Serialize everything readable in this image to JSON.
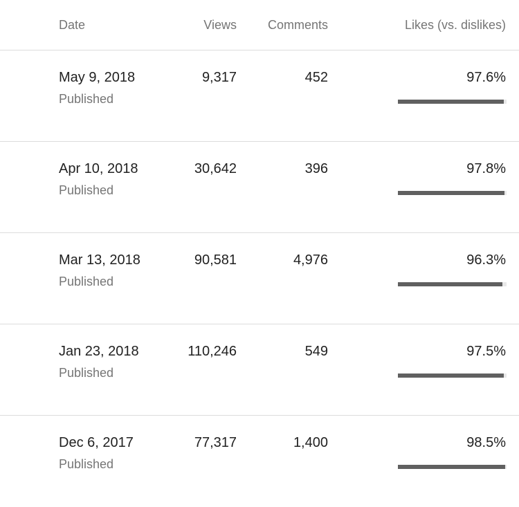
{
  "table": {
    "headers": {
      "date": "Date",
      "views": "Views",
      "comments": "Comments",
      "likes": "Likes (vs. dislikes)"
    },
    "rows": [
      {
        "date": "May 9, 2018",
        "status": "Published",
        "views": "9,317",
        "comments": "452",
        "likes": "97.6%",
        "likes_fraction": 0.976
      },
      {
        "date": "Apr 10, 2018",
        "status": "Published",
        "views": "30,642",
        "comments": "396",
        "likes": "97.8%",
        "likes_fraction": 0.978
      },
      {
        "date": "Mar 13, 2018",
        "status": "Published",
        "views": "90,581",
        "comments": "4,976",
        "likes": "96.3%",
        "likes_fraction": 0.963
      },
      {
        "date": "Jan 23, 2018",
        "status": "Published",
        "views": "110,246",
        "comments": "549",
        "likes": "97.5%",
        "likes_fraction": 0.975
      },
      {
        "date": "Dec 6, 2017",
        "status": "Published",
        "views": "77,317",
        "comments": "1,400",
        "likes": "98.5%",
        "likes_fraction": 0.985
      }
    ]
  },
  "colors": {
    "bar_fill": "#606060",
    "bar_track": "#e8e8e8",
    "secondary_text": "#757575",
    "divider": "#dcdcdc"
  }
}
